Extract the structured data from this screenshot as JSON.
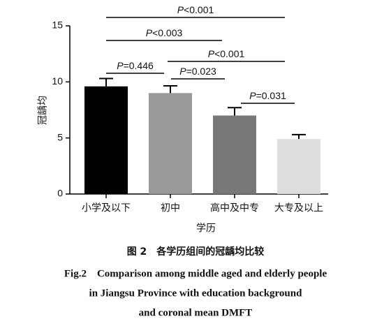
{
  "chart_data": {
    "type": "bar",
    "ylabel": "冠龋均",
    "xlabel": "学历",
    "categories": [
      "小学及以下",
      "初中",
      "高中及中专",
      "大专及以上"
    ],
    "values": [
      9.6,
      9.0,
      7.0,
      4.9
    ],
    "errors": [
      0.7,
      0.65,
      0.7,
      0.4
    ],
    "colors": [
      "#000000",
      "#999999",
      "#777777",
      "#dddddd"
    ],
    "ylim": [
      0,
      15
    ],
    "yticks": [
      0,
      5,
      10,
      15
    ],
    "annotations": [
      {
        "symbol": "P",
        "text": "<0.001"
      },
      {
        "symbol": "P",
        "text": "<0.003"
      },
      {
        "symbol": "P",
        "text": "<0.001"
      },
      {
        "symbol": "P",
        "text": "=0.446"
      },
      {
        "symbol": "P",
        "text": "=0.023"
      },
      {
        "symbol": "P",
        "text": "=0.031"
      }
    ],
    "caption_cn": "图 2　各学历组间的冠龋均比较",
    "caption_en": [
      "Fig.2　Comparison among middle aged and elderly people",
      "in Jiangsu Province with education background",
      "and coronal mean DMFT"
    ]
  }
}
